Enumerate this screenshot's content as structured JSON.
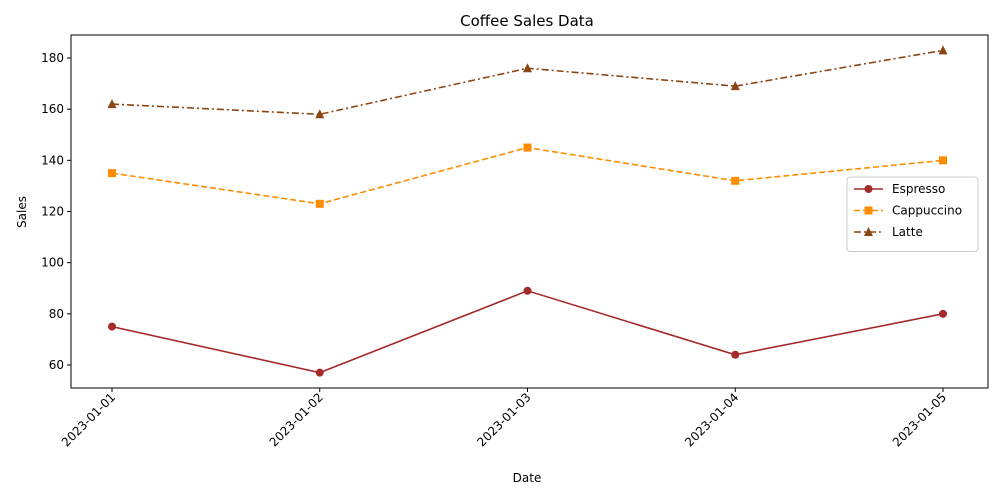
{
  "chart_data": {
    "type": "line",
    "title": "Coffee Sales Data",
    "xlabel": "Date",
    "ylabel": "Sales",
    "categories": [
      "2023-01-01",
      "2023-01-02",
      "2023-01-03",
      "2023-01-04",
      "2023-01-05"
    ],
    "y_ticks": [
      "60",
      "80",
      "100",
      "120",
      "140",
      "160",
      "180"
    ],
    "ylim": [
      51,
      189
    ],
    "grid": false,
    "legend_position": "center-right",
    "series": [
      {
        "name": "Espresso",
        "values": [
          75,
          57,
          89,
          64,
          80
        ],
        "color": "#a52a2a",
        "line_style": "solid",
        "marker": "circle"
      },
      {
        "name": "Cappuccino",
        "values": [
          135,
          123,
          145,
          132,
          140
        ],
        "color": "#ff8c00",
        "line_style": "dashed",
        "marker": "square"
      },
      {
        "name": "Latte",
        "values": [
          162,
          158,
          176,
          169,
          183
        ],
        "color": "#8b4513",
        "line_style": "dashdot",
        "marker": "triangle"
      }
    ]
  }
}
